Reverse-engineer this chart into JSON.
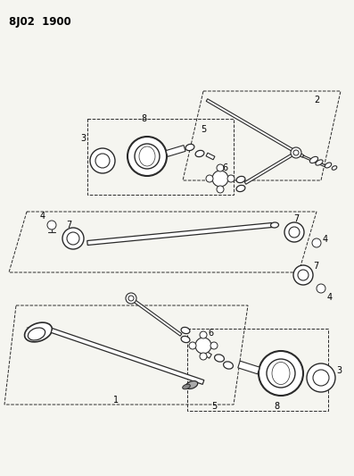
{
  "title": "8J02  1900",
  "bg_color": "#f5f5f0",
  "line_color": "#2a2a2a",
  "title_fontsize": 8.5,
  "fig_width": 3.97,
  "fig_height": 5.33,
  "dpi": 100,
  "gray_fill": "#aaaaaa",
  "light_gray": "#cccccc"
}
